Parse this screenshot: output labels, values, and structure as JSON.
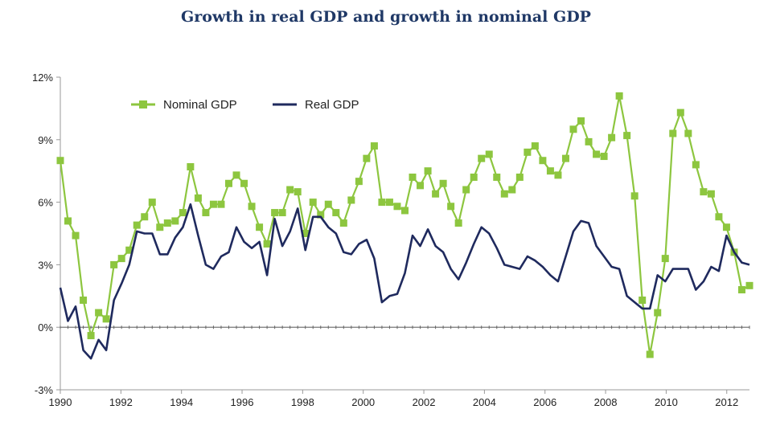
{
  "chart_data": {
    "type": "line",
    "title": "Growth in real GDP and growth in nominal GDP",
    "xlabel": "",
    "ylabel": "",
    "xlim": [
      1990,
      2012.75
    ],
    "ylim": [
      -3,
      12
    ],
    "x_ticks": [
      1990,
      1992,
      1994,
      1996,
      1998,
      2000,
      2002,
      2004,
      2006,
      2008,
      2010,
      2012
    ],
    "y_ticks": [
      -3,
      0,
      3,
      6,
      9,
      12
    ],
    "x_tick_labels": [
      "1990",
      "1992",
      "1994",
      "1996",
      "1998",
      "2000",
      "2002",
      "2004",
      "2006",
      "2008",
      "2010",
      "2012"
    ],
    "y_tick_labels": [
      "-3%",
      "0%",
      "3%",
      "6%",
      "9%",
      "12%"
    ],
    "legend_position": "top-left",
    "series": [
      {
        "name": "Nominal GDP",
        "color": "#8dc63f",
        "marker": "square",
        "values": [
          8.0,
          5.1,
          4.4,
          1.3,
          -0.4,
          0.7,
          0.4,
          3.0,
          3.3,
          3.7,
          4.9,
          5.3,
          6.0,
          4.8,
          5.0,
          5.1,
          5.5,
          7.7,
          6.2,
          5.5,
          5.9,
          5.9,
          6.9,
          7.3,
          6.9,
          5.8,
          4.8,
          4.0,
          5.5,
          5.5,
          6.6,
          6.5,
          4.5,
          6.0,
          5.4,
          5.9,
          5.5,
          5.0,
          6.1,
          7.0,
          8.1,
          8.7,
          6.0,
          6.0,
          5.8,
          5.6,
          7.2,
          6.8,
          7.5,
          6.4,
          6.9,
          5.8,
          5.0,
          6.6,
          7.2,
          8.1,
          8.3,
          7.2,
          6.4,
          6.6,
          7.2,
          8.4,
          8.7,
          8.0,
          7.5,
          7.3,
          8.1,
          9.5,
          9.9,
          8.9,
          8.3,
          8.2,
          9.1,
          11.1,
          9.2,
          6.3,
          1.3,
          -1.3,
          0.7,
          3.3,
          9.3,
          10.3,
          9.3,
          7.8,
          6.5,
          6.4,
          5.3,
          4.8,
          3.6,
          1.8,
          2.0
        ]
      },
      {
        "name": "Real GDP",
        "color": "#1f2a5e",
        "marker": "none",
        "values": [
          1.9,
          0.3,
          1.0,
          -1.1,
          -1.5,
          -0.6,
          -1.1,
          1.3,
          2.1,
          3.0,
          4.6,
          4.5,
          4.5,
          3.5,
          3.5,
          4.3,
          4.8,
          5.9,
          4.4,
          3.0,
          2.8,
          3.4,
          3.6,
          4.8,
          4.1,
          3.8,
          4.1,
          2.5,
          5.2,
          3.9,
          4.6,
          5.7,
          3.7,
          5.3,
          5.3,
          4.8,
          4.5,
          3.6,
          3.5,
          4.0,
          4.2,
          3.3,
          1.2,
          1.5,
          1.6,
          2.6,
          4.4,
          3.9,
          4.7,
          3.9,
          3.6,
          2.8,
          2.3,
          3.1,
          4.0,
          4.8,
          4.5,
          3.8,
          3.0,
          2.9,
          2.8,
          3.4,
          3.2,
          2.9,
          2.5,
          2.2,
          3.4,
          4.6,
          5.1,
          5.0,
          3.9,
          3.4,
          2.9,
          2.8,
          1.5,
          1.2,
          0.9,
          0.9,
          2.5,
          2.2,
          2.8,
          2.8,
          2.8,
          1.8,
          2.2,
          2.9,
          2.7,
          4.4,
          3.6,
          3.1,
          3.0
        ]
      }
    ]
  }
}
